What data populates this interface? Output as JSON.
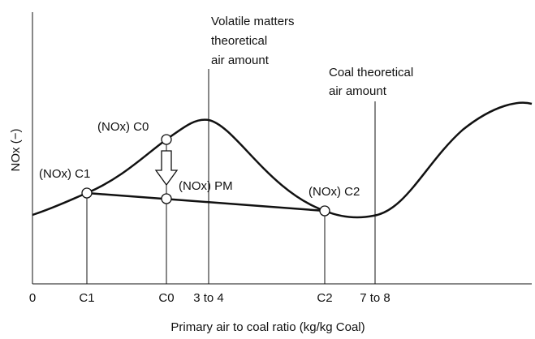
{
  "axes": {
    "y_label": "NOx (−)",
    "x_label": "Primary air to coal ratio (kg/kg Coal)",
    "x_ticks": [
      "0",
      "C1",
      "C0",
      "3 to 4",
      "C2",
      "7 to 8"
    ]
  },
  "annotations": {
    "volatile": [
      "Volatile matters",
      "theoretical",
      "air amount"
    ],
    "coal": [
      "Coal theoretical",
      "air amount"
    ],
    "c0": "(NOx) C0",
    "c1": "(NOx) C1",
    "pm": "(NOx) PM",
    "c2": "(NOx) C2"
  }
}
